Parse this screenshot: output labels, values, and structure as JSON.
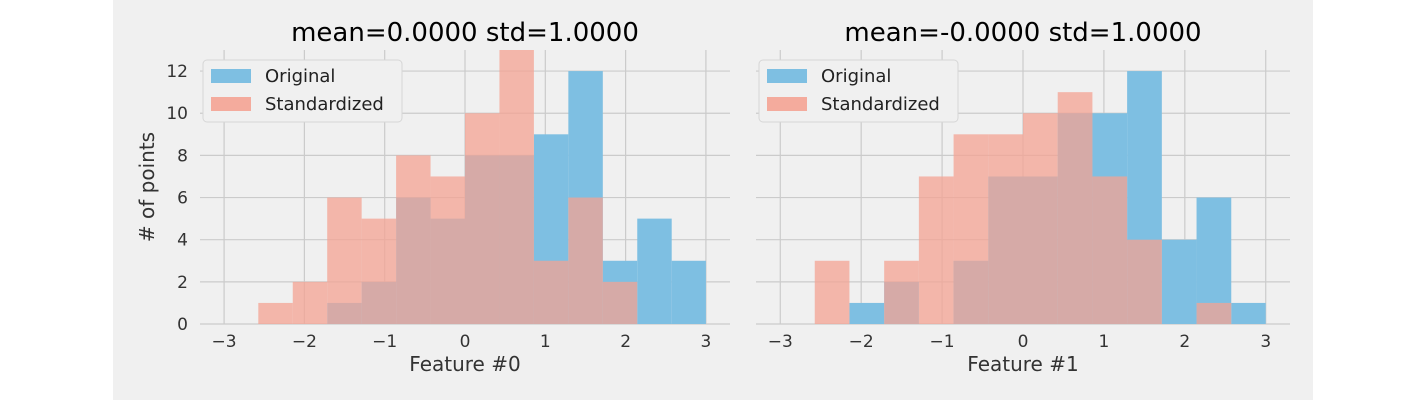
{
  "chart_data": [
    {
      "type": "histogram",
      "title": "mean=0.0000 std=1.0000",
      "xlabel": "Feature #0",
      "ylabel": "# of points",
      "xlim": [
        -3.3,
        3.3
      ],
      "ylim": [
        0,
        13
      ],
      "xticks": [
        -3,
        -2,
        -1,
        0,
        1,
        2,
        3
      ],
      "xtick_labels": [
        "−3",
        "−2",
        "−1",
        "0",
        "1",
        "2",
        "3"
      ],
      "yticks": [
        0,
        2,
        4,
        6,
        8,
        10,
        12
      ],
      "ytick_labels": [
        "0",
        "2",
        "4",
        "6",
        "8",
        "10",
        "12"
      ],
      "grid": true,
      "legend_position": "top-left",
      "series": [
        {
          "name": "Original",
          "color": "#7ebfe2",
          "bin_edges": [
            -1.715,
            -1.286,
            -0.857,
            -0.428,
            0.0,
            0.429,
            0.858,
            1.287,
            1.716,
            2.145,
            2.574,
            3.0
          ],
          "counts": [
            1,
            2,
            6,
            5,
            8,
            8,
            9,
            12,
            3,
            5,
            3
          ]
        },
        {
          "name": "Standardized",
          "color": "#f4a393",
          "bin_edges": [
            -2.574,
            -2.145,
            -1.716,
            -1.287,
            -0.858,
            -0.429,
            0.0,
            0.429,
            0.858,
            1.287,
            1.716,
            2.145
          ],
          "counts": [
            1,
            2,
            6,
            5,
            8,
            7,
            10,
            13,
            3,
            6,
            2
          ]
        }
      ]
    },
    {
      "type": "histogram",
      "title": "mean=-0.0000 std=1.0000",
      "xlabel": "Feature #1",
      "ylabel": "",
      "xlim": [
        -3.3,
        3.3
      ],
      "ylim": [
        0,
        13
      ],
      "xticks": [
        -3,
        -2,
        -1,
        0,
        1,
        2,
        3
      ],
      "xtick_labels": [
        "−3",
        "−2",
        "−1",
        "0",
        "1",
        "2",
        "3"
      ],
      "yticks": [
        0,
        2,
        4,
        6,
        8,
        10,
        12
      ],
      "grid": true,
      "legend_position": "top-left",
      "series": [
        {
          "name": "Original",
          "color": "#7ebfe2",
          "bin_edges": [
            -2.145,
            -1.716,
            -1.287,
            -0.858,
            -0.429,
            0.0,
            0.429,
            0.858,
            1.287,
            1.716,
            2.145,
            2.574,
            3.0
          ],
          "counts": [
            1,
            2,
            0,
            3,
            7,
            7,
            10,
            10,
            12,
            4,
            6,
            1
          ]
        },
        {
          "name": "Standardized",
          "color": "#f4a393",
          "bin_edges": [
            -2.574,
            -2.145,
            -1.716,
            -1.287,
            -0.858,
            -0.429,
            0.0,
            0.429,
            0.858,
            1.287,
            1.716,
            2.145,
            2.574
          ],
          "counts": [
            3,
            0,
            3,
            7,
            9,
            9,
            10,
            11,
            7,
            4,
            0,
            1
          ]
        }
      ]
    }
  ]
}
